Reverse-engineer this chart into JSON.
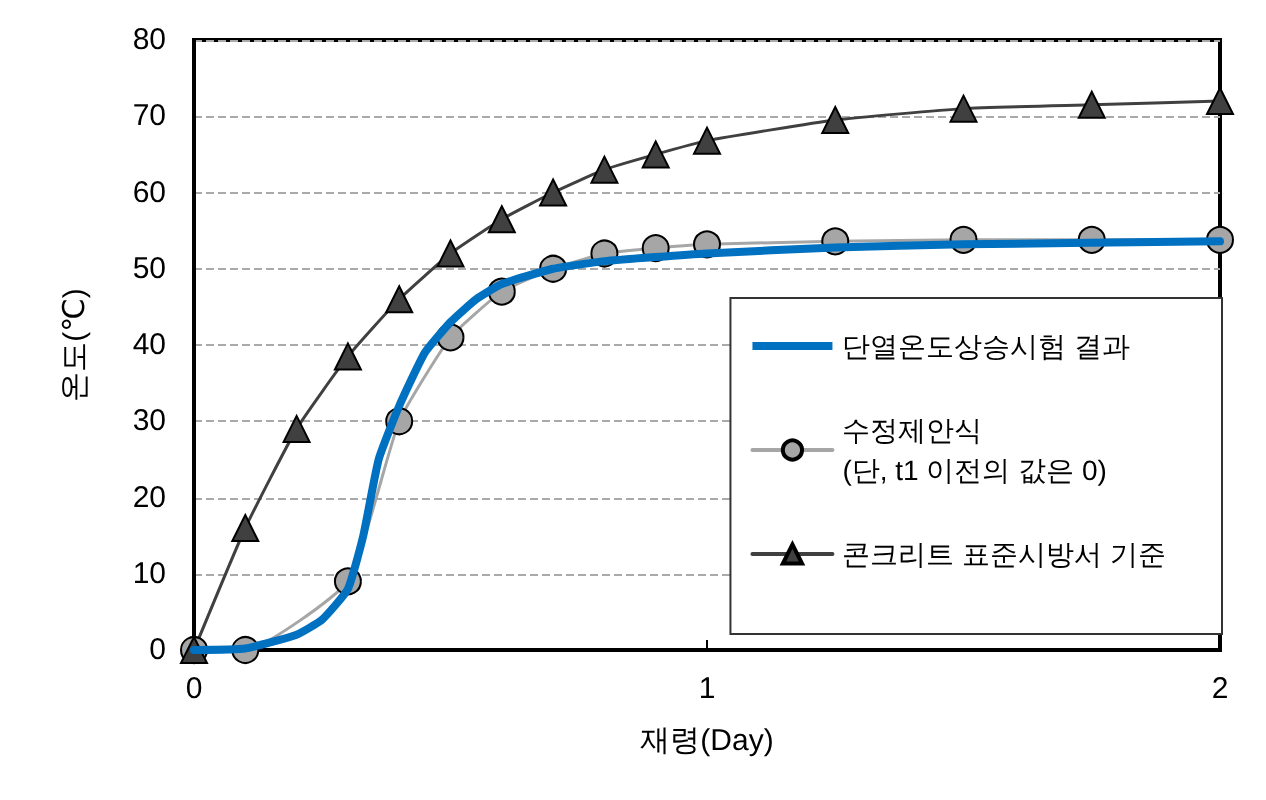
{
  "chart_data": {
    "type": "line",
    "xlabel": "재령(Day)",
    "ylabel": "온도(℃)",
    "xlim": [
      0,
      2
    ],
    "xticks": [
      0,
      1,
      2
    ],
    "ylim": [
      0,
      80
    ],
    "yticks": [
      0,
      10,
      20,
      30,
      40,
      50,
      60,
      70,
      80
    ],
    "grid": "y",
    "legend": "bottom right",
    "series": [
      {
        "name": "단열온도상승시험 결과",
        "color": "#0070c0",
        "marker": "none",
        "x": [
          0,
          0.1,
          0.2,
          0.25,
          0.3,
          0.33,
          0.36,
          0.4,
          0.45,
          0.5,
          0.55,
          0.6,
          0.7,
          0.8,
          1.0,
          1.25,
          1.5,
          2
        ],
        "values": [
          0,
          0.2,
          2,
          4,
          8,
          15,
          25,
          32,
          39,
          43,
          46,
          48,
          50,
          51,
          52,
          52.8,
          53.2,
          53.6
        ]
      },
      {
        "name": "수정제안식\n(단, t1 이전의 값은 0)",
        "color": "#a6a6a6",
        "marker": "circle",
        "x": [
          0,
          0.1,
          0.3,
          0.4,
          0.5,
          0.6,
          0.7,
          0.8,
          0.9,
          1.0,
          1.25,
          1.5,
          1.75,
          2
        ],
        "values": [
          0,
          0,
          9,
          30,
          41,
          47,
          50,
          52,
          52.7,
          53.2,
          53.6,
          53.8,
          53.8,
          53.8
        ]
      },
      {
        "name": "콘크리트 표준시방서 기준",
        "color": "#404040",
        "marker": "triangle",
        "x": [
          0,
          0.1,
          0.2,
          0.3,
          0.4,
          0.5,
          0.6,
          0.7,
          0.8,
          0.9,
          1.0,
          1.25,
          1.5,
          1.75,
          2
        ],
        "values": [
          0,
          16,
          29,
          38.5,
          46,
          52,
          56.5,
          60,
          63,
          65,
          66.8,
          69.5,
          71,
          71.5,
          72
        ]
      }
    ]
  }
}
